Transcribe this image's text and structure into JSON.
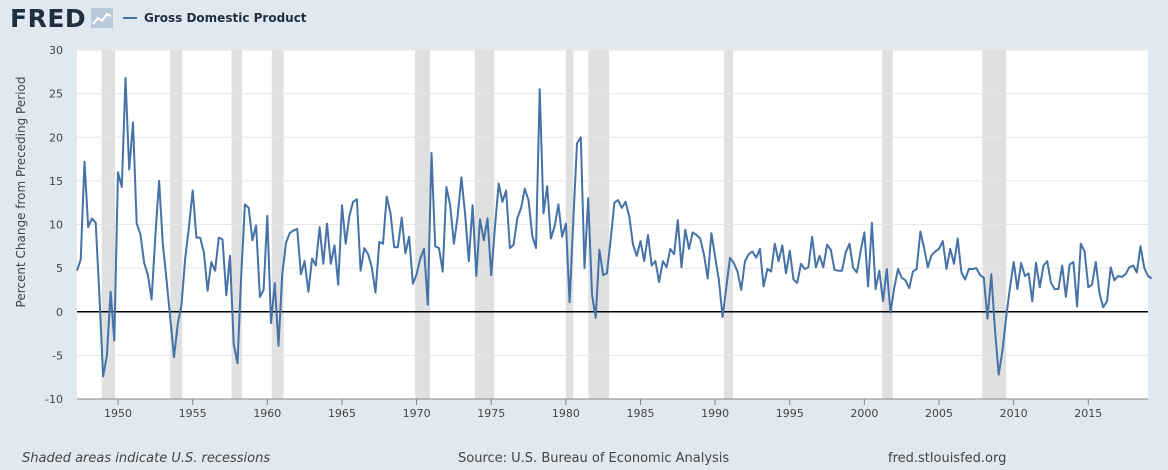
{
  "header": {
    "logo_text": "FRED",
    "legend_label": "Gross Domestic Product"
  },
  "footer": {
    "recession_note": "Shaded areas indicate U.S. recessions",
    "source": "Source: U.S. Bureau of Economic Analysis",
    "site": "fred.stlouisfed.org"
  },
  "colors": {
    "line": "#4572a7",
    "recession": "#e0e0e0",
    "background": "#e1e9f0",
    "plot_bg": "#ffffff"
  },
  "chart_data": {
    "type": "line",
    "ylabel": "Percent Change from Preceding Period",
    "xlim": [
      1947.25,
      2019.0
    ],
    "ylim": [
      -10,
      30
    ],
    "y_ticks": [
      -10,
      -5,
      0,
      5,
      10,
      15,
      20,
      25,
      30
    ],
    "x_ticks": [
      1950,
      1955,
      1960,
      1965,
      1970,
      1975,
      1980,
      1985,
      1990,
      1995,
      2000,
      2005,
      2010,
      2015
    ],
    "grid": true,
    "legend_position": "top-left",
    "recessions": [
      [
        1948.9,
        1949.8
      ],
      [
        1953.5,
        1954.3
      ],
      [
        1957.6,
        1958.3
      ],
      [
        1960.3,
        1961.1
      ],
      [
        1969.9,
        1970.9
      ],
      [
        1973.9,
        1975.2
      ],
      [
        1980.0,
        1980.5
      ],
      [
        1981.5,
        1982.9
      ],
      [
        1990.6,
        1991.2
      ],
      [
        2001.2,
        2001.9
      ],
      [
        2007.9,
        2009.5
      ]
    ],
    "series": [
      {
        "start": 1947.25,
        "step": 0.25,
        "values": [
          4.7,
          6.0,
          17.2,
          9.7,
          10.7,
          10.2,
          1.9,
          -7.4,
          -5.0,
          2.3,
          -3.3,
          16.0,
          14.3,
          26.8,
          16.3,
          21.7,
          10.1,
          8.9,
          5.6,
          4.2,
          1.4,
          8.8,
          15.0,
          7.8,
          3.6,
          -0.8,
          -5.2,
          -1.4,
          0.8,
          6.1,
          9.8,
          13.9,
          8.5,
          8.5,
          6.8,
          2.4,
          5.7,
          4.7,
          8.5,
          8.3,
          1.9,
          6.4,
          -3.7,
          -5.9,
          4.1,
          12.3,
          11.9,
          8.2,
          9.9,
          1.7,
          2.5,
          11.0,
          -1.3,
          3.3,
          -3.9,
          4.2,
          7.9,
          9.0,
          9.3,
          9.5,
          4.3,
          5.8,
          2.3,
          6.1,
          5.3,
          9.7,
          5.5,
          10.1,
          5.5,
          7.6,
          3.1,
          12.2,
          7.8,
          11.0,
          12.6,
          12.9,
          4.7,
          7.3,
          6.6,
          5.1,
          2.2,
          8.0,
          7.8,
          13.2,
          11.3,
          7.4,
          7.4,
          10.8,
          6.7,
          8.6,
          3.2,
          4.3,
          6.1,
          7.2,
          0.8,
          18.2,
          7.5,
          7.3,
          4.6,
          14.3,
          12.2,
          7.8,
          10.9,
          15.4,
          11.2,
          5.8,
          12.2,
          4.1,
          10.6,
          8.2,
          10.7,
          4.2,
          9.8,
          14.7,
          12.6,
          13.9,
          7.3,
          7.7,
          10.7,
          11.9,
          14.1,
          12.8,
          8.7,
          7.3,
          25.5,
          11.3,
          14.4,
          8.4,
          9.8,
          12.3,
          8.6,
          10.1,
          1.1,
          10.4,
          19.3,
          20.0,
          5.0,
          13.0,
          2.0,
          -0.7,
          7.1,
          4.2,
          4.4,
          8.2,
          12.5,
          12.8,
          11.9,
          12.6,
          10.9,
          7.7,
          6.4,
          8.1,
          5.8,
          8.8,
          5.3,
          5.8,
          3.4,
          5.8,
          5.1,
          7.2,
          6.6,
          10.5,
          5.1,
          9.4,
          7.2,
          9.1,
          8.8,
          8.4,
          6.6,
          3.8,
          9.0,
          6.3,
          3.6,
          -0.6,
          2.8,
          6.2,
          5.6,
          4.6,
          2.5,
          5.8,
          6.6,
          6.9,
          6.2,
          7.2,
          2.9,
          4.9,
          4.6,
          7.8,
          5.8,
          7.6,
          4.4,
          7.0,
          3.7,
          3.3,
          5.5,
          4.9,
          5.1,
          8.6,
          5.1,
          6.4,
          5.1,
          7.7,
          7.1,
          4.8,
          4.7,
          4.7,
          6.8,
          7.8,
          5.0,
          4.5,
          7.0,
          9.1,
          2.9,
          10.2,
          2.6,
          4.7,
          1.2,
          4.9,
          -0.1,
          2.7,
          4.9,
          3.9,
          3.6,
          2.7,
          4.6,
          4.9,
          9.2,
          7.3,
          5.1,
          6.5,
          6.9,
          7.2,
          8.1,
          4.9,
          7.2,
          5.5,
          8.4,
          4.5,
          3.7,
          4.9,
          4.9,
          5.0,
          4.2,
          3.9,
          -0.8,
          4.3,
          -2.1,
          -7.2,
          -4.4,
          -0.6,
          2.7,
          5.7,
          2.6,
          5.6,
          4.1,
          4.4,
          1.2,
          5.6,
          2.8,
          5.3,
          5.8,
          3.3,
          2.6,
          2.6,
          5.3,
          1.7,
          5.4,
          5.7,
          0.6,
          7.8,
          6.9,
          2.8,
          3.1,
          5.7,
          2.1,
          0.5,
          1.2,
          5.1,
          3.6,
          4.1,
          4.0,
          4.3,
          5.1,
          5.3,
          4.5,
          7.5,
          5.0,
          4.1,
          3.8
        ]
      }
    ]
  }
}
